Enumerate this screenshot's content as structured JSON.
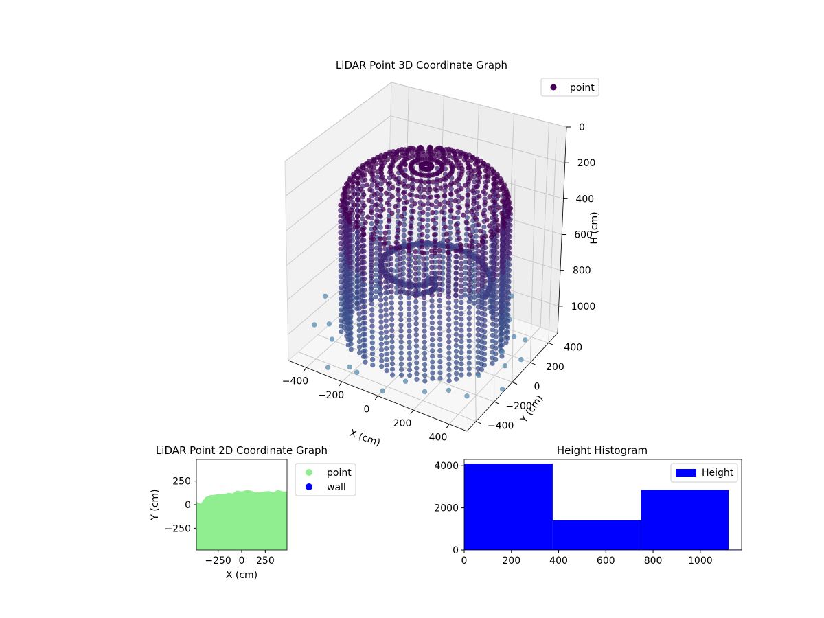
{
  "figure": {
    "colors": {
      "point_dark": "#440154",
      "point_mid": "#3b528b",
      "point_light": "#5b8fb0",
      "green": "#90ee90",
      "wall": "#0000ff",
      "hist": "#0000ff"
    }
  },
  "chart_data": [
    {
      "type": "scatter",
      "title": "LiDAR Point 3D Coordinate Graph",
      "xlabel": "X (cm)",
      "ylabel": "Y (cm)",
      "zlabel": "H (cm)",
      "xlim": [
        -500,
        500
      ],
      "ylim": [
        -500,
        500
      ],
      "zlim": [
        0,
        1150
      ],
      "z_inverted": true,
      "xticks": [
        -400,
        -200,
        0,
        200,
        400
      ],
      "yticks": [
        -400,
        -200,
        0,
        200,
        400
      ],
      "zticks": [
        0,
        200,
        400,
        600,
        800,
        1000
      ],
      "legend": {
        "position": "top-right",
        "entries": [
          "point"
        ]
      },
      "shape": "dome",
      "grid": true
    },
    {
      "type": "scatter",
      "title": "LiDAR Point 2D Coordinate Graph",
      "xlabel": "X (cm)",
      "ylabel": "Y (cm)",
      "xlim": [
        -480,
        480
      ],
      "ylim": [
        -480,
        480
      ],
      "xticks": [
        -250,
        0,
        250
      ],
      "yticks": [
        -250,
        0,
        250
      ],
      "legend": {
        "position": "outside-right",
        "entries": [
          "point",
          "wall"
        ]
      },
      "fill_top_edge": [
        30,
        10,
        80,
        100,
        105,
        115,
        110,
        125,
        120,
        150,
        140,
        155,
        150,
        130,
        135,
        140,
        145,
        130,
        160,
        140,
        140
      ]
    },
    {
      "type": "bar",
      "title": "Height Histogram",
      "xlim": [
        0,
        1175
      ],
      "ylim": [
        0,
        4300
      ],
      "xticks": [
        0,
        200,
        400,
        600,
        800,
        1000
      ],
      "yticks": [
        0,
        2000,
        4000
      ],
      "bins": [
        [
          0,
          375
        ],
        [
          375,
          750
        ],
        [
          750,
          1120
        ],
        [
          1120,
          1175
        ]
      ],
      "values": [
        4100,
        1400,
        2850,
        20
      ],
      "legend": {
        "position": "top-right",
        "entries": [
          "Height"
        ]
      }
    }
  ]
}
